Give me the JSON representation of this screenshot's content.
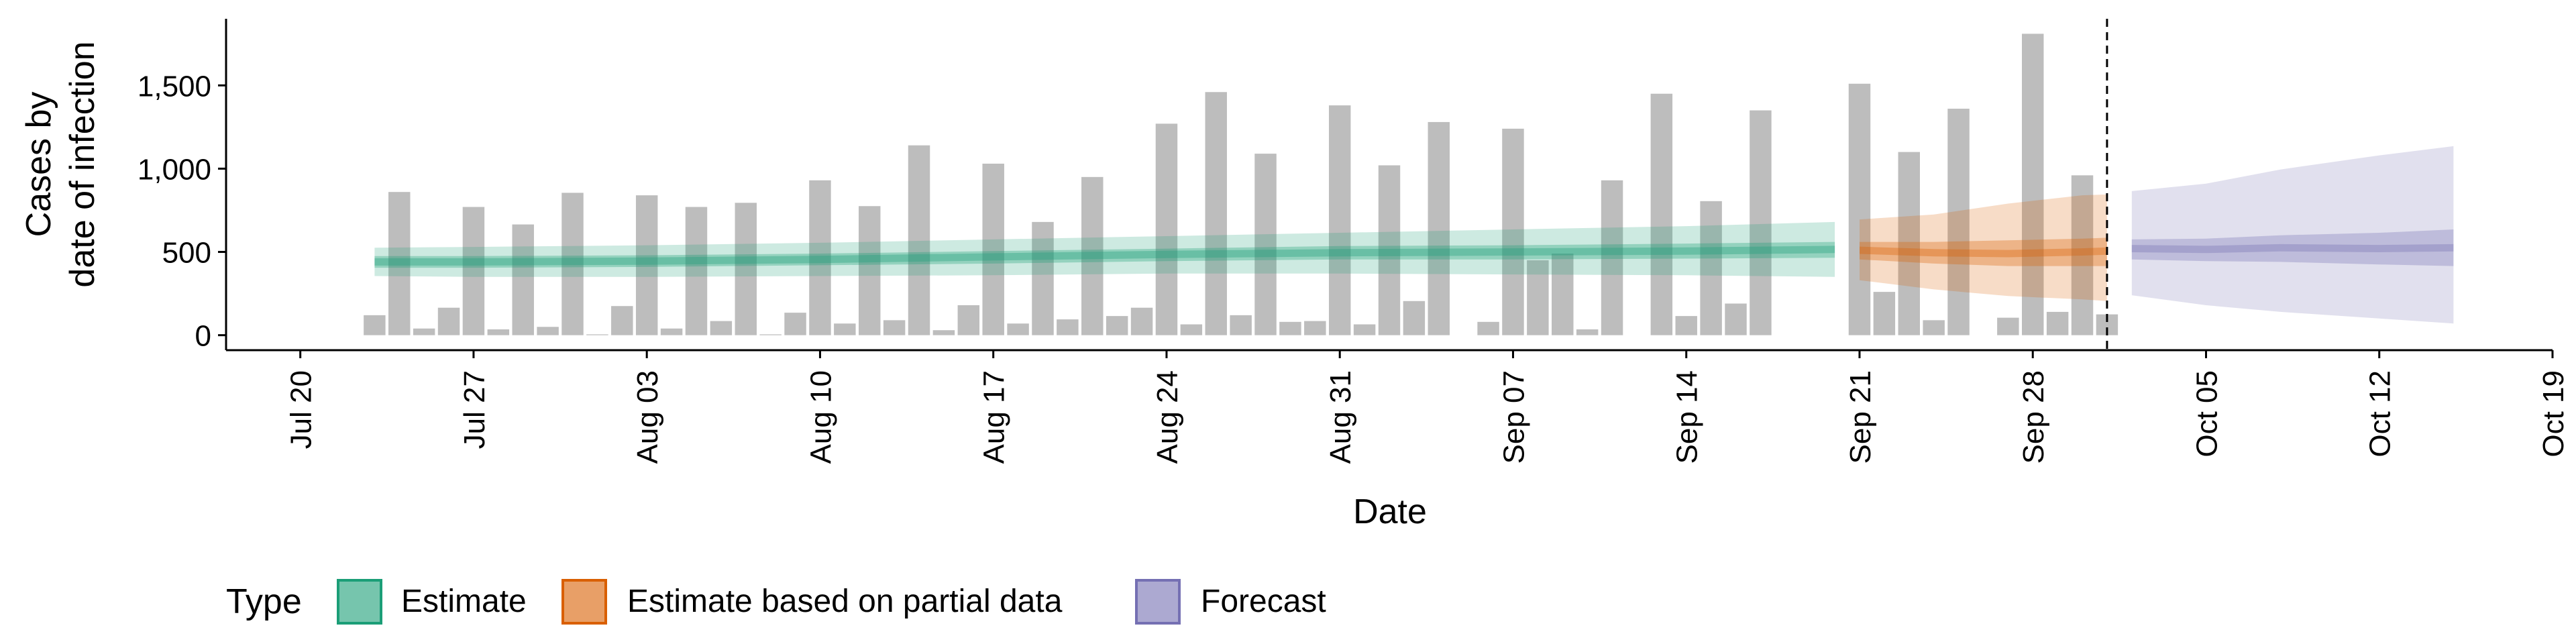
{
  "chart_data": {
    "type": "bar",
    "xlabel": "Date",
    "ylabel_lines": [
      "Cases by",
      "date of infection"
    ],
    "x_range": [
      "2020-07-17",
      "2020-10-19"
    ],
    "ylim": [
      -90,
      1900
    ],
    "y_ticks": [
      0,
      500,
      1000,
      1500
    ],
    "y_tick_labels": [
      "0",
      "500",
      "1,000",
      "1,500"
    ],
    "x_ticks": [
      "2020-07-20",
      "2020-07-27",
      "2020-08-03",
      "2020-08-10",
      "2020-08-17",
      "2020-08-24",
      "2020-08-31",
      "2020-09-07",
      "2020-09-14",
      "2020-09-21",
      "2020-09-28",
      "2020-10-05",
      "2020-10-12",
      "2020-10-19"
    ],
    "x_tick_labels": [
      "Jul 20",
      "Jul 27",
      "Aug 03",
      "Aug 10",
      "Aug 17",
      "Aug 24",
      "Aug 31",
      "Sep 07",
      "Sep 14",
      "Sep 21",
      "Sep 28",
      "Oct 05",
      "Oct 12",
      "Oct 19"
    ],
    "vline_date": "2020-10-01",
    "grid": false,
    "legend": {
      "title": "Type",
      "position": "bottom",
      "items": [
        {
          "label": "Estimate",
          "color": "#1b9e77"
        },
        {
          "label": "Estimate based on partial data",
          "color": "#d95f02"
        },
        {
          "label": "Forecast",
          "color": "#7570b3"
        }
      ]
    },
    "bars": {
      "color": "#bdbdbd",
      "data": [
        [
          "2020-07-23",
          120
        ],
        [
          "2020-07-24",
          860
        ],
        [
          "2020-07-25",
          40
        ],
        [
          "2020-07-26",
          165
        ],
        [
          "2020-07-27",
          770
        ],
        [
          "2020-07-28",
          35
        ],
        [
          "2020-07-29",
          665
        ],
        [
          "2020-07-30",
          50
        ],
        [
          "2020-07-31",
          855
        ],
        [
          "2020-08-01",
          5
        ],
        [
          "2020-08-02",
          175
        ],
        [
          "2020-08-03",
          840
        ],
        [
          "2020-08-04",
          40
        ],
        [
          "2020-08-05",
          770
        ],
        [
          "2020-08-06",
          85
        ],
        [
          "2020-08-07",
          795
        ],
        [
          "2020-08-08",
          5
        ],
        [
          "2020-08-09",
          135
        ],
        [
          "2020-08-10",
          930
        ],
        [
          "2020-08-11",
          70
        ],
        [
          "2020-08-12",
          775
        ],
        [
          "2020-08-13",
          90
        ],
        [
          "2020-08-14",
          1140
        ],
        [
          "2020-08-15",
          30
        ],
        [
          "2020-08-16",
          180
        ],
        [
          "2020-08-17",
          1030
        ],
        [
          "2020-08-18",
          70
        ],
        [
          "2020-08-19",
          680
        ],
        [
          "2020-08-20",
          95
        ],
        [
          "2020-08-21",
          950
        ],
        [
          "2020-08-22",
          115
        ],
        [
          "2020-08-23",
          165
        ],
        [
          "2020-08-24",
          1270
        ],
        [
          "2020-08-25",
          65
        ],
        [
          "2020-08-26",
          1460
        ],
        [
          "2020-08-27",
          120
        ],
        [
          "2020-08-28",
          1090
        ],
        [
          "2020-08-29",
          80
        ],
        [
          "2020-08-30",
          85
        ],
        [
          "2020-08-31",
          1380
        ],
        [
          "2020-09-01",
          65
        ],
        [
          "2020-09-02",
          1020
        ],
        [
          "2020-09-03",
          205
        ],
        [
          "2020-09-04",
          1280
        ],
        [
          "2020-09-06",
          80
        ],
        [
          "2020-09-07",
          1240
        ],
        [
          "2020-09-08",
          450
        ],
        [
          "2020-09-09",
          490
        ],
        [
          "2020-09-10",
          35
        ],
        [
          "2020-09-11",
          930
        ],
        [
          "2020-09-13",
          1450
        ],
        [
          "2020-09-14",
          115
        ],
        [
          "2020-09-15",
          805
        ],
        [
          "2020-09-16",
          190
        ],
        [
          "2020-09-17",
          1350
        ],
        [
          "2020-09-21",
          1510
        ],
        [
          "2020-09-22",
          260
        ],
        [
          "2020-09-23",
          1100
        ],
        [
          "2020-09-24",
          90
        ],
        [
          "2020-09-25",
          1360
        ],
        [
          "2020-09-27",
          105
        ],
        [
          "2020-09-28",
          1810
        ],
        [
          "2020-09-29",
          140
        ],
        [
          "2020-09-30",
          960
        ],
        [
          "2020-10-01",
          125
        ]
      ]
    },
    "bands": [
      {
        "type": "Estimate",
        "color": "#1b9e77",
        "data": [
          [
            "2020-07-23",
            440,
            405,
            475,
            355,
            525
          ],
          [
            "2020-07-27",
            440,
            405,
            475,
            350,
            530
          ],
          [
            "2020-08-03",
            445,
            410,
            480,
            350,
            540
          ],
          [
            "2020-08-10",
            455,
            420,
            490,
            355,
            555
          ],
          [
            "2020-08-17",
            470,
            430,
            505,
            360,
            575
          ],
          [
            "2020-08-24",
            485,
            445,
            520,
            370,
            595
          ],
          [
            "2020-08-31",
            495,
            455,
            535,
            370,
            615
          ],
          [
            "2020-09-07",
            500,
            455,
            540,
            365,
            635
          ],
          [
            "2020-09-14",
            505,
            460,
            550,
            360,
            655
          ],
          [
            "2020-09-20",
            515,
            465,
            560,
            350,
            680
          ]
        ]
      },
      {
        "type": "Estimate based on partial data",
        "color": "#d95f02",
        "data": [
          [
            "2020-09-21",
            510,
            455,
            560,
            330,
            695
          ],
          [
            "2020-09-24",
            495,
            430,
            560,
            275,
            725
          ],
          [
            "2020-09-27",
            490,
            415,
            570,
            235,
            790
          ],
          [
            "2020-09-30",
            500,
            415,
            580,
            215,
            840
          ],
          [
            "2020-10-01",
            505,
            415,
            585,
            205,
            845
          ]
        ]
      },
      {
        "type": "Forecast",
        "color": "#7570b3",
        "data": [
          [
            "2020-10-02",
            520,
            455,
            575,
            240,
            865
          ],
          [
            "2020-10-05",
            515,
            445,
            580,
            180,
            910
          ],
          [
            "2020-10-08",
            525,
            440,
            600,
            140,
            995
          ],
          [
            "2020-10-12",
            520,
            425,
            615,
            100,
            1080
          ],
          [
            "2020-10-15",
            525,
            415,
            635,
            70,
            1135
          ]
        ]
      }
    ]
  }
}
